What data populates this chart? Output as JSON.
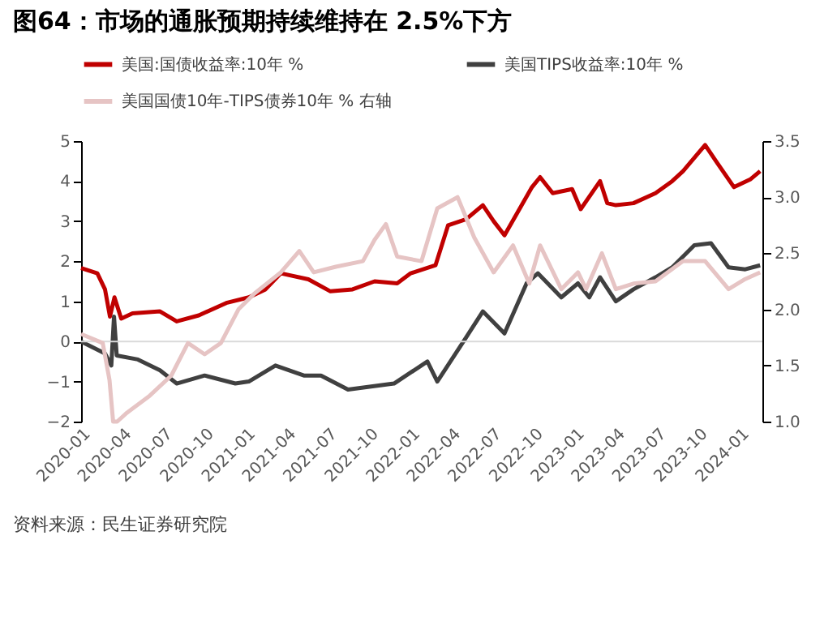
{
  "chart_data": {
    "type": "line",
    "title": "图64：市场的通胀预期持续维持在 2.5%下方",
    "annotations": [
      "资料来源：民生证券研究院"
    ],
    "xlim": [
      "2020-01-01",
      "2024-02-20"
    ],
    "xticks": [
      "2020-01",
      "2020-04",
      "2020-07",
      "2020-10",
      "2021-01",
      "2021-04",
      "2021-07",
      "2021-10",
      "2022-01",
      "2022-04",
      "2022-07",
      "2022-10",
      "2023-01",
      "2023-04",
      "2023-07",
      "2023-10",
      "2024-01"
    ],
    "ylim": [
      -2,
      5
    ],
    "yticks": [
      -2,
      -1,
      0,
      1,
      2,
      3,
      4,
      5
    ],
    "y2lim": [
      1.0,
      3.5
    ],
    "y2ticks": [
      {
        "value": 1.0,
        "label": "1.0"
      },
      1.5,
      {
        "value": 2.0,
        "label": "2.0"
      },
      2.5,
      {
        "value": 3.0,
        "label": "3.0"
      },
      3.5
    ],
    "ref_lines": [
      {
        "axis": "y",
        "value": 0,
        "color": "#d9d9d9"
      }
    ],
    "grid": false,
    "legend": "top",
    "line_style": "solid",
    "marker": "none",
    "series": [
      {
        "name": "美国:国债收益率:10年 %",
        "color": "#c00000",
        "x": [
          "2020-01-01",
          "2020-02-06",
          "2020-02-23",
          "2020-03-05",
          "2020-03-15",
          "2020-03-30",
          "2020-04-24",
          "2020-06-24",
          "2020-07-31",
          "2020-09-18",
          "2020-11-18",
          "2021-01-07",
          "2021-02-13",
          "2021-03-19",
          "2021-05-19",
          "2021-07-07",
          "2021-08-25",
          "2021-10-13",
          "2021-12-02",
          "2022-01-01",
          "2022-02-25",
          "2022-03-25",
          "2022-05-04",
          "2022-06-10",
          "2022-07-04",
          "2022-07-28",
          "2022-09-27",
          "2022-10-15",
          "2022-11-12",
          "2022-12-25",
          "2023-01-13",
          "2023-02-25",
          "2023-03-13",
          "2023-04-01",
          "2023-05-10",
          "2023-06-28",
          "2023-08-04",
          "2023-08-28",
          "2023-10-16",
          "2023-11-12",
          "2023-12-19",
          "2024-01-25",
          "2024-02-15"
        ],
        "values": [
          1.83,
          1.7,
          1.3,
          0.62,
          1.1,
          0.57,
          0.7,
          0.75,
          0.5,
          0.65,
          0.96,
          1.1,
          1.3,
          1.7,
          1.55,
          1.25,
          1.3,
          1.5,
          1.45,
          1.7,
          1.9,
          2.9,
          3.05,
          3.4,
          3.0,
          2.65,
          3.85,
          4.1,
          3.7,
          3.8,
          3.3,
          4.0,
          3.45,
          3.4,
          3.45,
          3.7,
          4.0,
          4.25,
          4.9,
          4.45,
          3.85,
          4.05,
          4.25
        ]
      },
      {
        "name": "美国TIPS收益率:10年 %",
        "color": "#404040",
        "x": [
          "2020-01-01",
          "2020-02-23",
          "2020-03-08",
          "2020-03-14",
          "2020-03-20",
          "2020-05-06",
          "2020-06-24",
          "2020-07-31",
          "2020-10-01",
          "2020-12-08",
          "2021-01-07",
          "2021-03-07",
          "2021-05-09",
          "2021-06-16",
          "2021-08-15",
          "2021-11-25",
          "2022-02-07",
          "2022-03-01",
          "2022-05-04",
          "2022-06-10",
          "2022-07-28",
          "2022-09-15",
          "2022-10-10",
          "2022-12-01",
          "2023-01-07",
          "2023-02-01",
          "2023-02-25",
          "2023-04-01",
          "2023-05-10",
          "2023-06-28",
          "2023-08-04",
          "2023-09-22",
          "2023-10-29",
          "2023-12-07",
          "2024-01-13",
          "2024-02-15"
        ],
        "values": [
          0.0,
          -0.3,
          -0.6,
          0.62,
          -0.35,
          -0.45,
          -0.72,
          -1.05,
          -0.85,
          -1.05,
          -1.0,
          -0.6,
          -0.85,
          -0.85,
          -1.2,
          -1.05,
          -0.5,
          -1.0,
          0.1,
          0.75,
          0.2,
          1.45,
          1.7,
          1.1,
          1.45,
          1.1,
          1.6,
          1.0,
          1.3,
          1.6,
          1.85,
          2.4,
          2.45,
          1.85,
          1.8,
          1.9
        ]
      },
      {
        "name": "美国国债10年-TIPS债券10年 % 右轴",
        "color": "#e6c4c4",
        "axis": "y2",
        "x": [
          "2020-01-01",
          "2020-02-18",
          "2020-03-04",
          "2020-03-12",
          "2020-03-21",
          "2020-04-12",
          "2020-06-01",
          "2020-07-19",
          "2020-08-25",
          "2020-10-01",
          "2020-11-06",
          "2020-12-15",
          "2021-01-19",
          "2021-03-19",
          "2021-04-29",
          "2021-05-31",
          "2021-07-19",
          "2021-09-17",
          "2021-10-13",
          "2021-11-07",
          "2021-12-02",
          "2022-01-25",
          "2022-03-01",
          "2022-04-15",
          "2022-05-22",
          "2022-07-04",
          "2022-08-16",
          "2022-09-21",
          "2022-10-15",
          "2022-12-01",
          "2023-01-07",
          "2023-01-25",
          "2023-03-01",
          "2023-04-01",
          "2023-05-10",
          "2023-06-28",
          "2023-08-28",
          "2023-10-16",
          "2023-12-07",
          "2024-01-13",
          "2024-02-15"
        ],
        "values": [
          1.78,
          1.7,
          1.37,
          1.0,
          1.0,
          1.08,
          1.23,
          1.41,
          1.7,
          1.6,
          1.7,
          2.0,
          2.14,
          2.33,
          2.52,
          2.33,
          2.38,
          2.43,
          2.62,
          2.76,
          2.47,
          2.43,
          2.9,
          3.0,
          2.64,
          2.33,
          2.57,
          2.23,
          2.57,
          2.18,
          2.33,
          2.18,
          2.5,
          2.18,
          2.23,
          2.25,
          2.43,
          2.43,
          2.18,
          2.27,
          2.33
        ]
      }
    ]
  }
}
